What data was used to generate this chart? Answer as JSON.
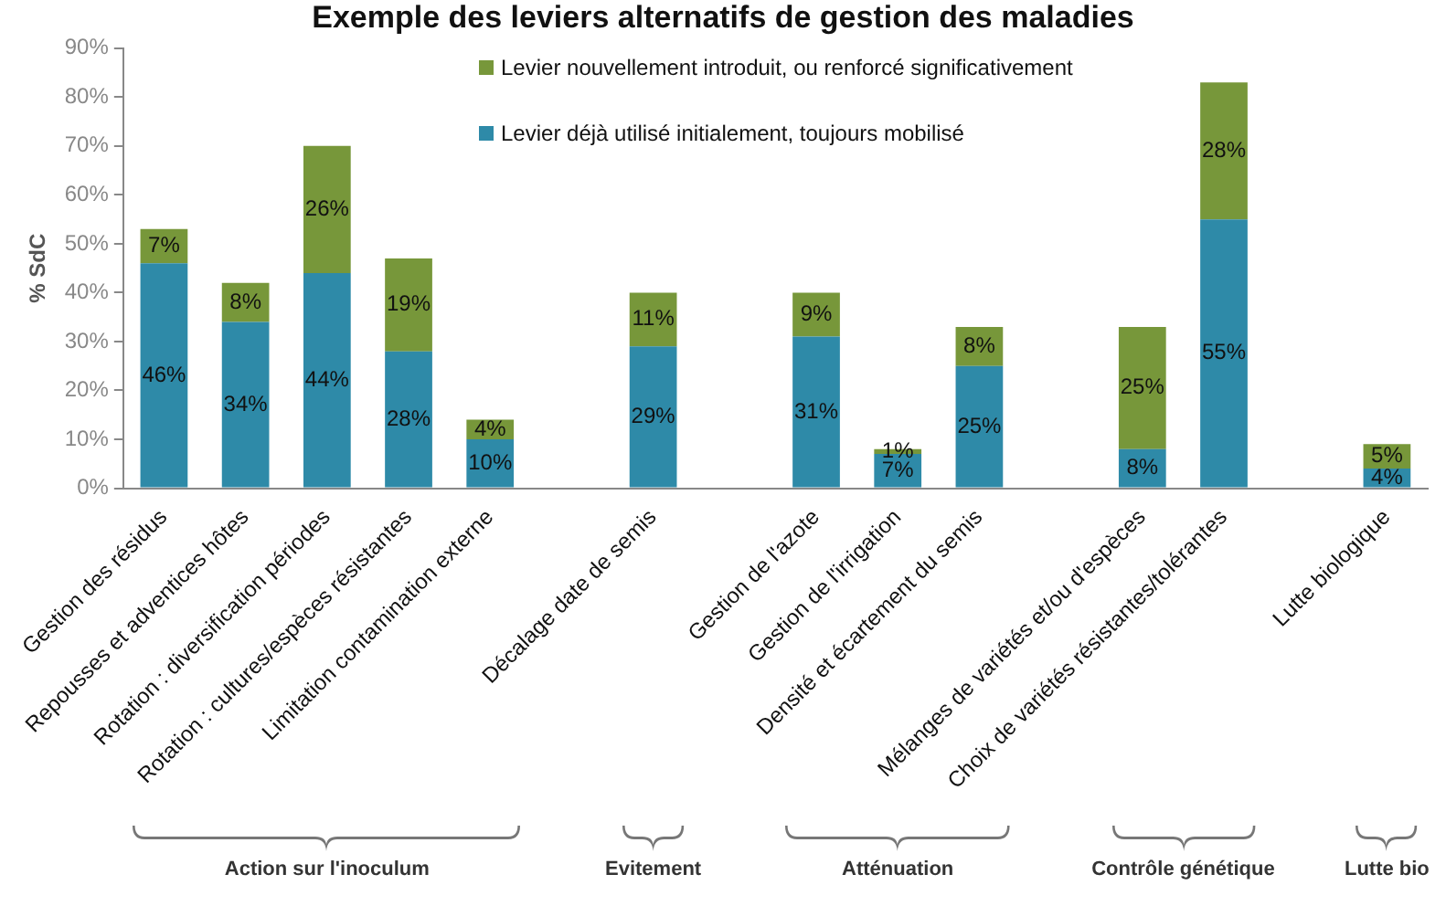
{
  "chart_data": {
    "type": "bar",
    "title": "Exemple des leviers alternatifs de gestion des maladies",
    "ylabel": "% SdC",
    "categories": [
      "Gestion des résidus",
      "Repousses et adventices hôtes",
      "Rotation : diversification périodes",
      "Rotation : cultures/espèces résistantes",
      "Limitation contamination externe",
      null,
      "Décalage date de semis",
      null,
      "Gestion de l'azote",
      "Gestion de l'irrigation",
      "Densité et écartement du semis",
      null,
      "Mélanges de variétés et/ou d'espèces",
      "Choix de variétés résistantes/tolérantes",
      null,
      "Lutte biologique"
    ],
    "stacked": true,
    "series": [
      {
        "name": "Levier déjà utilisé initialement, toujours mobilisé",
        "color": "#2e8aa8",
        "values": [
          46,
          34,
          44,
          28,
          10,
          null,
          29,
          null,
          31,
          7,
          25,
          null,
          8,
          55,
          null,
          4
        ],
        "value_labels": [
          "46%",
          "34%",
          "44%",
          "28%",
          "10%",
          null,
          "29%",
          null,
          "31%",
          "7%",
          "25%",
          null,
          "8%",
          "55%",
          null,
          "4%"
        ]
      },
      {
        "name": "Levier nouvellement introduit, ou renforcé significativement",
        "color": "#77973a",
        "values": [
          7,
          8,
          26,
          19,
          4,
          null,
          11,
          null,
          9,
          1,
          8,
          null,
          25,
          28,
          null,
          5
        ],
        "value_labels": [
          "7%",
          "8%",
          "26%",
          "19%",
          "4%",
          null,
          "11%",
          null,
          "9%",
          "1%",
          "8%",
          null,
          "25%",
          "28%",
          null,
          "5%"
        ]
      }
    ],
    "ylim": [
      0,
      90
    ],
    "yticks": [
      {
        "value": 0,
        "label": "0%"
      },
      {
        "value": 10,
        "label": "10%"
      },
      {
        "value": 20,
        "label": "20%"
      },
      {
        "value": 30,
        "label": "30%"
      },
      {
        "value": 40,
        "label": "40%"
      },
      {
        "value": 50,
        "label": "50%"
      },
      {
        "value": 60,
        "label": "60%"
      },
      {
        "value": 70,
        "label": "70%"
      },
      {
        "value": 80,
        "label": "80%"
      },
      {
        "value": 90,
        "label": "90%"
      }
    ],
    "grid": false,
    "legend": "top",
    "annotations": [
      "Action sur l'inoculum",
      "Evitement",
      "Atténuation",
      "Contrôle génétique",
      "Lutte bio"
    ]
  }
}
